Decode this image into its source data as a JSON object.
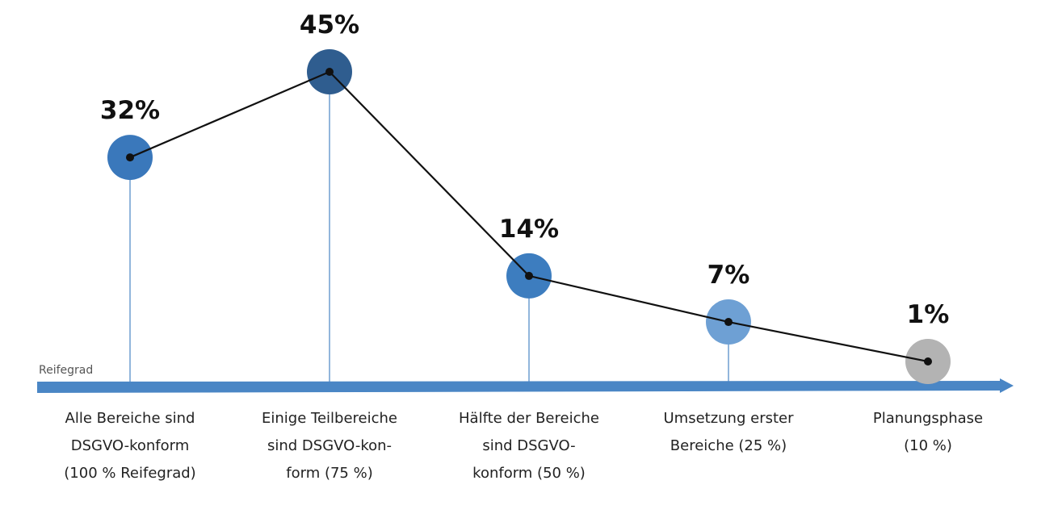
{
  "chart_data": {
    "type": "line",
    "axis_label": "Reifegrad",
    "categories": [
      "Alle Bereiche sind DSGVO-konform (100 % Reifegrad)",
      "Einige Teilbereiche sind DSGVO-kon-form (75 %)",
      "Hälfte der Bereiche sind DSGVO-konform (50 %)",
      "Umsetzung erster Bereiche (25 %)",
      "Planungsphase (10 %)"
    ],
    "category_lines": [
      [
        "Alle Bereiche sind",
        "DSGVO-konform",
        "(100 % Reifegrad)"
      ],
      [
        "Einige Teilbereiche",
        "sind DSGVO-kon-",
        "form (75 %)"
      ],
      [
        "Hälfte der Bereiche",
        "sind DSGVO-",
        "konform (50 %)"
      ],
      [
        "Umsetzung erster",
        "Bereiche (25 %)"
      ],
      [
        "Planungsphase",
        "(10 %)"
      ]
    ],
    "values": [
      32,
      45,
      14,
      7,
      1
    ],
    "value_labels": [
      "32%",
      "45%",
      "14%",
      "7%",
      "1%"
    ],
    "colors": [
      "#3a78bb",
      "#2f5d8f",
      "#3d7dbf",
      "#6ea0d4",
      "#b3b3b3"
    ],
    "line_color": "#111111",
    "axis_color": "#4a86c5",
    "ylim": [
      0,
      50
    ],
    "grid": false,
    "legend": "none"
  }
}
